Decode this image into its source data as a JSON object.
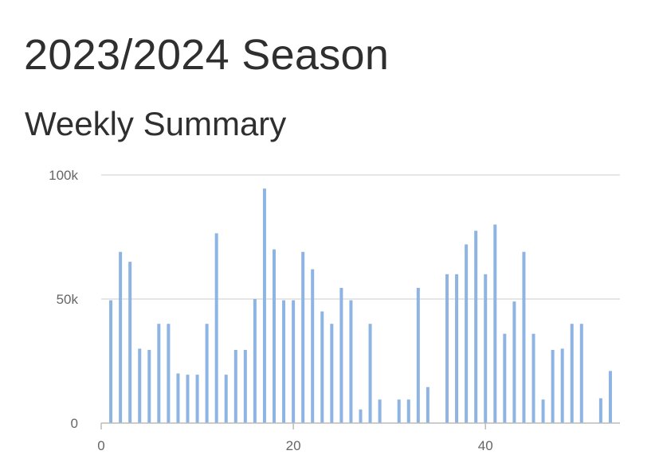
{
  "header": {
    "title": "2023/2024 Season",
    "subtitle": "Weekly Summary"
  },
  "colors": {
    "bar": "#8db4e2",
    "grid": "#dddddd",
    "axis": "#bbbbbb",
    "tick_text": "#666666",
    "title_text": "#2f2f2f"
  },
  "chart_data": {
    "type": "bar",
    "x": [
      1,
      2,
      3,
      4,
      5,
      6,
      7,
      8,
      9,
      10,
      11,
      12,
      13,
      14,
      15,
      16,
      17,
      18,
      19,
      20,
      21,
      22,
      23,
      24,
      25,
      26,
      27,
      28,
      29,
      31,
      32,
      33,
      34,
      36,
      37,
      38,
      39,
      40,
      41,
      42,
      43,
      44,
      45,
      46,
      47,
      48,
      49,
      50,
      52,
      53
    ],
    "values": [
      49500,
      69000,
      65000,
      30000,
      29500,
      40000,
      40000,
      20000,
      19500,
      19500,
      40000,
      76500,
      19500,
      29500,
      29500,
      50000,
      94500,
      70000,
      49500,
      49500,
      69000,
      62000,
      45000,
      40000,
      54500,
      49500,
      5500,
      40000,
      9500,
      9500,
      9500,
      54500,
      14500,
      60000,
      60000,
      72000,
      77500,
      60000,
      80000,
      36000,
      49000,
      69000,
      36000,
      9500,
      29500,
      30000,
      40000,
      40000,
      10000,
      21000
    ],
    "xlim": [
      0,
      54
    ],
    "ylim": [
      0,
      100000
    ],
    "x_ticks": [
      0,
      20,
      40
    ],
    "x_tick_labels": [
      "0",
      "20",
      "40"
    ],
    "y_ticks": [
      0,
      50000,
      100000
    ],
    "y_tick_labels": [
      "0",
      "50k",
      "100k"
    ],
    "grid": true,
    "legend": "none",
    "title": "2023/2024 Season",
    "subtitle": "Weekly Summary",
    "xlabel": "",
    "ylabel": ""
  }
}
